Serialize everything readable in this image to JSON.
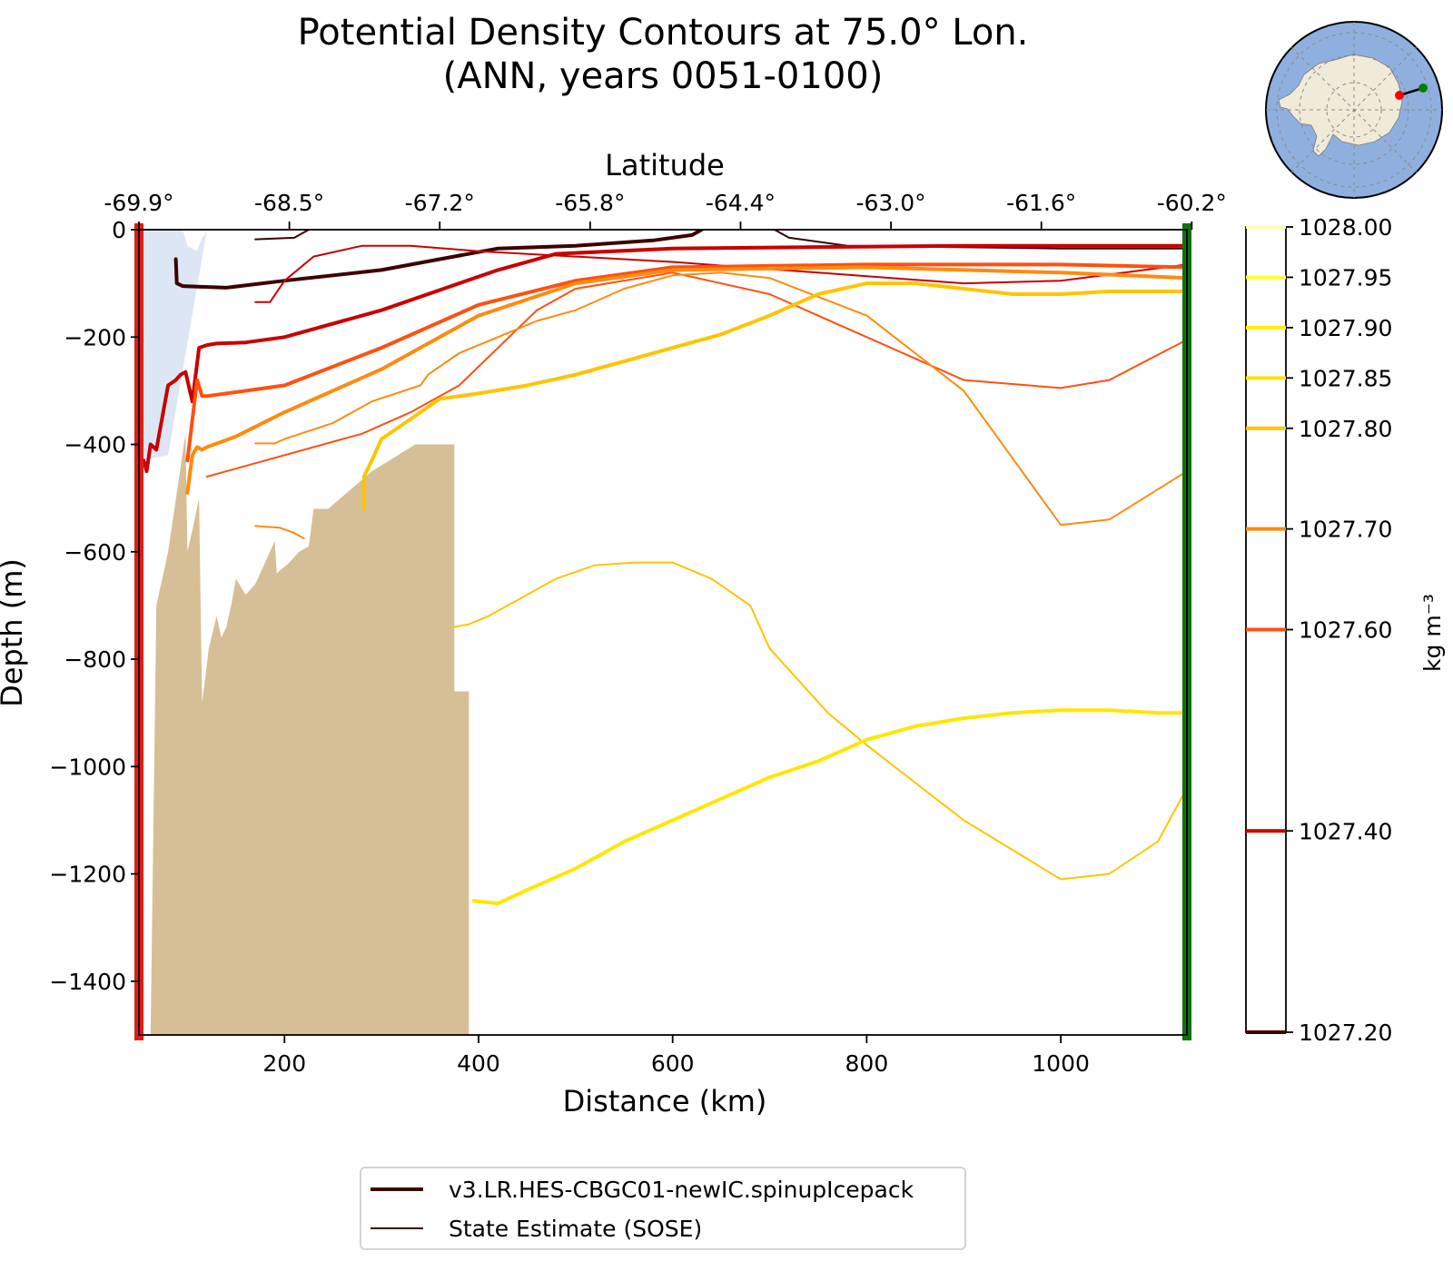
{
  "title_line1": "Potential Density Contours at 75.0° Lon.",
  "title_line2": "(ANN, years 0051-0100)",
  "chart_data": {
    "type": "line",
    "title": "Potential Density Contours at 75.0° Lon. (ANN, years 0051-0100)",
    "xlabel": "Distance (km)",
    "ylabel": "Depth (m)",
    "top_xlabel": "Latitude",
    "colorbar_label": "kg m⁻³",
    "xlim": [
      50,
      1130
    ],
    "ylim": [
      -1500,
      0
    ],
    "x_ticks": [
      200,
      400,
      600,
      800,
      1000
    ],
    "y_ticks": [
      0,
      -200,
      -400,
      -600,
      -800,
      -1000,
      -1200,
      -1400
    ],
    "y_tick_labels": [
      "0",
      "−200",
      "−400",
      "−600",
      "−800",
      "−1000",
      "−1200",
      "−1400"
    ],
    "top_ticks": [
      {
        "x": 50,
        "label": "-69.9°"
      },
      {
        "x": 205,
        "label": "-68.5°"
      },
      {
        "x": 360,
        "label": "-67.2°"
      },
      {
        "x": 515,
        "label": "-65.8°"
      },
      {
        "x": 670,
        "label": "-64.4°"
      },
      {
        "x": 825,
        "label": "-63.0°"
      },
      {
        "x": 980,
        "label": "-61.6°"
      },
      {
        "x": 1135,
        "label": "-60.2°"
      }
    ],
    "colorbar_levels": [
      {
        "value": 1027.2,
        "label": "1027.20",
        "color": "#3d0000"
      },
      {
        "value": 1027.4,
        "label": "1027.40",
        "color": "#c80000"
      },
      {
        "value": 1027.6,
        "label": "1027.60",
        "color": "#ff5010"
      },
      {
        "value": 1027.7,
        "label": "1027.70",
        "color": "#ff8a10"
      },
      {
        "value": 1027.8,
        "label": "1027.80",
        "color": "#ffc400"
      },
      {
        "value": 1027.85,
        "label": "1027.85",
        "color": "#ffe000"
      },
      {
        "value": 1027.9,
        "label": "1027.90",
        "color": "#fff000"
      },
      {
        "value": 1027.95,
        "label": "1027.95",
        "color": "#ffff30"
      },
      {
        "value": 1028.0,
        "label": "1028.00",
        "color": "#ffffb0"
      }
    ],
    "series": [
      {
        "name": "v3.LR.HES-CBGC01-newIC.spinupIcepack",
        "level": 1027.2,
        "color": "#3d0000",
        "width": 4,
        "x": [
          88,
          89,
          95,
          140,
          200,
          300,
          360,
          420,
          500,
          580,
          620,
          630
        ],
        "y": [
          -55,
          -100,
          -105,
          -108,
          -95,
          -75,
          -55,
          -35,
          -30,
          -20,
          -10,
          0
        ]
      },
      {
        "name": "State Estimate (SOSE)",
        "level": 1027.2,
        "color": "#3d0000",
        "width": 2,
        "x": [
          170,
          210,
          225
        ],
        "y": [
          -18,
          -15,
          0
        ]
      },
      {
        "name": "State Estimate (SOSE)",
        "level": 1027.2,
        "color": "#3d0000",
        "width": 2,
        "x": [
          705,
          720,
          780,
          1000,
          1130
        ],
        "y": [
          0,
          -15,
          -30,
          -35,
          -35
        ]
      },
      {
        "name": "v3.LR.HES-CBGC01-newIC.spinupIcepack",
        "level": 1027.4,
        "color": "#c80000",
        "width": 4,
        "x": [
          55,
          58,
          62,
          68,
          75,
          80,
          88,
          93,
          98,
          105,
          112,
          120,
          130,
          160,
          200,
          300,
          380,
          420,
          480,
          600,
          900,
          1130
        ],
        "y": [
          -430,
          -450,
          -400,
          -410,
          -340,
          -290,
          -280,
          -270,
          -265,
          -320,
          -220,
          -215,
          -212,
          -210,
          -200,
          -150,
          -100,
          -75,
          -45,
          -35,
          -30,
          -30
        ]
      },
      {
        "name": "State Estimate (SOSE)",
        "level": 1027.4,
        "color": "#c80000",
        "width": 2,
        "x": [
          170,
          185,
          200,
          230,
          280,
          330,
          400,
          600,
          900,
          1000,
          1130
        ],
        "y": [
          -135,
          -135,
          -95,
          -50,
          -30,
          -30,
          -40,
          -60,
          -100,
          -95,
          -65
        ]
      },
      {
        "name": "v3.LR.HES-CBGC01-newIC.spinupIcepack",
        "level": 1027.6,
        "color": "#ff5010",
        "width": 4,
        "x": [
          100,
          110,
          115,
          120,
          140,
          200,
          300,
          400,
          500,
          600,
          800,
          1000,
          1130
        ],
        "y": [
          -430,
          -280,
          -310,
          -310,
          -305,
          -290,
          -220,
          -140,
          -95,
          -70,
          -65,
          -65,
          -70
        ]
      },
      {
        "name": "State Estimate (SOSE)",
        "level": 1027.6,
        "color": "#ff5010",
        "width": 2,
        "x": [
          120,
          160,
          200,
          240,
          280,
          330,
          380,
          420,
          460,
          500,
          600,
          700,
          800,
          900,
          1000,
          1050,
          1130
        ],
        "y": [
          -460,
          -440,
          -420,
          -400,
          -380,
          -340,
          -290,
          -220,
          -150,
          -110,
          -80,
          -120,
          -200,
          -280,
          -295,
          -280,
          -205
        ]
      },
      {
        "name": "v3.LR.HES-CBGC01-newIC.spinupIcepack",
        "level": 1027.7,
        "color": "#ff8a10",
        "width": 4,
        "x": [
          100,
          105,
          110,
          115,
          120,
          150,
          200,
          300,
          400,
          500,
          600,
          800,
          1000,
          1130
        ],
        "y": [
          -490,
          -420,
          -405,
          -410,
          -405,
          -385,
          -340,
          -260,
          -160,
          -100,
          -75,
          -70,
          -80,
          -90
        ]
      },
      {
        "name": "State Estimate (SOSE)",
        "level": 1027.7,
        "color": "#ff8a10",
        "width": 2,
        "x": [
          170,
          190,
          200,
          250,
          290,
          340,
          348,
          380,
          420,
          460,
          500,
          550,
          600,
          650,
          700,
          800,
          900,
          1000,
          1050,
          1130
        ],
        "y": [
          -398,
          -398,
          -390,
          -360,
          -320,
          -290,
          -270,
          -230,
          -200,
          -170,
          -150,
          -110,
          -85,
          -80,
          -90,
          -160,
          -300,
          -550,
          -540,
          -450
        ]
      },
      {
        "name": "State Estimate (SOSE)",
        "level": 1027.7,
        "color": "#ff8a10",
        "width": 2,
        "x": [
          170,
          195,
          210,
          220
        ],
        "y": [
          -552,
          -555,
          -565,
          -575
        ]
      },
      {
        "name": "v3.LR.HES-CBGC01-newIC.spinupIcepack",
        "level": 1027.8,
        "color": "#ffc400",
        "width": 4,
        "x": [
          282,
          282,
          290,
          300,
          340,
          360,
          400,
          450,
          500,
          550,
          600,
          650,
          700,
          750,
          800,
          850,
          900,
          950,
          1000,
          1050,
          1130
        ],
        "y": [
          -520,
          -460,
          -430,
          -390,
          -340,
          -315,
          -305,
          -290,
          -270,
          -245,
          -220,
          -195,
          -160,
          -120,
          -100,
          -100,
          -110,
          -120,
          -120,
          -115,
          -115
        ]
      },
      {
        "name": "State Estimate (SOSE)",
        "level": 1027.8,
        "color": "#ffc400",
        "width": 2,
        "x": [
          375,
          390,
          410,
          450,
          480,
          520,
          560,
          600,
          640,
          680,
          700,
          760,
          800,
          900,
          1000,
          1050,
          1100,
          1130
        ],
        "y": [
          -740,
          -735,
          -720,
          -680,
          -650,
          -625,
          -620,
          -620,
          -650,
          -700,
          -780,
          -900,
          -960,
          -1100,
          -1210,
          -1200,
          -1140,
          -1040
        ]
      },
      {
        "name": "v3.LR.HES-CBGC01-newIC.spinupIcepack",
        "level": 1027.9,
        "color": "#ffe600",
        "width": 4,
        "x": [
          395,
          420,
          450,
          500,
          550,
          600,
          650,
          700,
          750,
          800,
          850,
          900,
          950,
          1000,
          1050,
          1100,
          1130
        ],
        "y": [
          -1250,
          -1255,
          -1230,
          -1190,
          -1140,
          -1100,
          -1060,
          -1020,
          -990,
          -950,
          -925,
          -910,
          -900,
          -895,
          -895,
          -900,
          -900
        ]
      }
    ],
    "bathymetry": {
      "x": [
        50,
        62,
        68,
        80,
        98,
        100,
        105,
        112,
        115,
        118,
        122,
        130,
        135,
        140,
        145,
        150,
        160,
        170,
        180,
        190,
        192,
        205,
        215,
        225,
        230,
        245,
        290,
        290,
        335,
        335,
        375,
        375,
        390,
        390,
        50
      ],
      "y": [
        -1500,
        -1500,
        -700,
        -600,
        -380,
        -600,
        -560,
        -500,
        -880,
        -840,
        -780,
        -720,
        -760,
        -740,
        -700,
        -650,
        -680,
        -660,
        -620,
        -580,
        -640,
        -620,
        -600,
        -590,
        -520,
        -520,
        -450,
        -450,
        -400,
        -400,
        -400,
        -860,
        -860,
        -1500,
        -1500
      ],
      "color": "#d6bf96"
    },
    "ice_shelf": {
      "x": [
        52,
        95,
        100,
        110,
        115,
        118,
        120,
        80,
        52
      ],
      "y": [
        0,
        0,
        -30,
        -40,
        -15,
        -10,
        0,
        -420,
        -430
      ],
      "color": "#dce6f4"
    },
    "section_markers": {
      "start_x": 53,
      "start_color": "#e01b1b",
      "end_x": 1128,
      "end_color": "#107010"
    },
    "legend": [
      {
        "label": "v3.LR.HES-CBGC01-newIC.spinupIcepack",
        "color": "#3d0000",
        "style": "thick"
      },
      {
        "label": "State Estimate (SOSE)",
        "color": "#3d0000",
        "style": "thin"
      }
    ],
    "inset_map": {
      "description": "south polar stereographic",
      "ocean_color": "#8fb0df",
      "land_color": "#f0ead8",
      "marker_start": "#ff0000",
      "marker_end": "#008000"
    }
  }
}
